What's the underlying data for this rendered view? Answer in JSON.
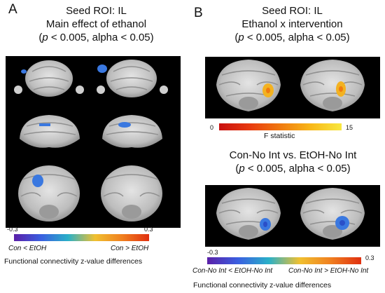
{
  "panel_a": {
    "letter": "A",
    "title_line1": "Seed ROI: IL",
    "title_line2": "Main effect of ethanol",
    "stats_p": "p",
    "stats_rest": " < 0.005, alpha < 0.05)",
    "stats_open": "(",
    "colorbar": {
      "min": "-0.3",
      "max": "0.3",
      "colors": [
        "#5a1fa8",
        "#3a5fe0",
        "#2ab0c8",
        "#f0c030",
        "#f08020",
        "#e03010"
      ]
    },
    "label_left": "Con < EtOH",
    "label_right": "Con > EtOH",
    "caption": "Functional connectivity z-value differences"
  },
  "panel_b": {
    "letter": "B",
    "title_line1": "Seed ROI: IL",
    "title_line2": "Ethanol x intervention",
    "stats_open": "(",
    "stats_p": "p",
    "stats_rest": " < 0.005, alpha < 0.05)",
    "f_bar": {
      "min": "0",
      "max": "15",
      "label": "F statistic",
      "colors": [
        "#c81010",
        "#e83a10",
        "#f07a10",
        "#f8b818",
        "#f8e840"
      ]
    },
    "subtitle_line1": "Con-No Int vs. EtOH-No Int",
    "sub_stats_open": "(",
    "sub_stats_p": "p",
    "sub_stats_rest": " < 0.005, alpha < 0.05)",
    "colorbar": {
      "min": "-0.3",
      "max": "0.3",
      "colors": [
        "#5a1fa8",
        "#3a5fe0",
        "#2ab0c8",
        "#f0c030",
        "#f08020",
        "#e03010"
      ]
    },
    "label_left": "Con-No Int < EtOH-No Int",
    "label_right": "Con-No Int > EtOH-No Int",
    "caption": "Functional connectivity z-value differences"
  }
}
